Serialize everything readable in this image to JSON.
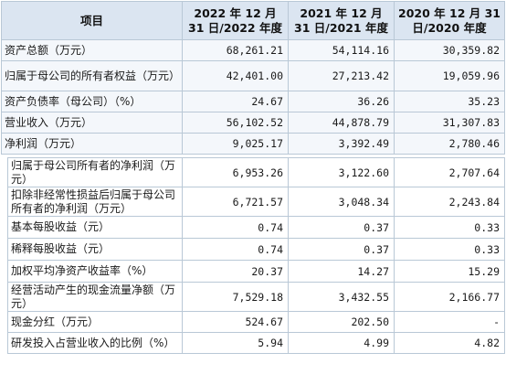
{
  "header": {
    "col0": "项目",
    "col1": "2022 年 12 月 31 日/2022 年度",
    "col2": "2021 年 12 月 31 日/2021 年度",
    "col3": "2020 年 12 月 31 日/2020 年度"
  },
  "rows": [
    {
      "label": "资产总额（万元）",
      "v2022": "68,261.21",
      "v2021": "54,114.16",
      "v2020": "30,359.82"
    },
    {
      "label": "归属于母公司的所有者权益（万元）",
      "v2022": "42,401.00",
      "v2021": "27,213.42",
      "v2020": "19,059.96"
    },
    {
      "label": "资产负债率（母公司）（%）",
      "v2022": "24.67",
      "v2021": "36.26",
      "v2020": "35.23"
    },
    {
      "label": "营业收入（万元）",
      "v2022": "56,102.52",
      "v2021": "44,878.79",
      "v2020": "31,307.83"
    },
    {
      "label": "净利润（万元）",
      "v2022": "9,025.17",
      "v2021": "3,392.49",
      "v2020": "2,780.46"
    },
    {
      "label": "归属于母公司所有者的净利润（万元）",
      "v2022": "6,953.26",
      "v2021": "3,122.60",
      "v2020": "2,707.64"
    },
    {
      "label": "扣除非经常性损益后归属于母公司所有者的净利润（万元）",
      "v2022": "6,721.57",
      "v2021": "3,048.34",
      "v2020": "2,243.84"
    },
    {
      "label": "基本每股收益（元）",
      "v2022": "0.74",
      "v2021": "0.37",
      "v2020": "0.33"
    },
    {
      "label": "稀释每股收益（元）",
      "v2022": "0.74",
      "v2021": "0.37",
      "v2020": "0.33"
    },
    {
      "label": "加权平均净资产收益率（%）",
      "v2022": "20.37",
      "v2021": "14.27",
      "v2020": "15.29"
    },
    {
      "label": "经营活动产生的现金流量净额（万元）",
      "v2022": "7,529.18",
      "v2021": "3,432.55",
      "v2020": "2,166.77"
    },
    {
      "label": "现金分红（万元）",
      "v2022": "524.67",
      "v2021": "202.50",
      "v2020": "-"
    },
    {
      "label": "研发投入占营业收入的比例（%）",
      "v2022": "5.94",
      "v2021": "4.99",
      "v2020": "4.82"
    }
  ]
}
